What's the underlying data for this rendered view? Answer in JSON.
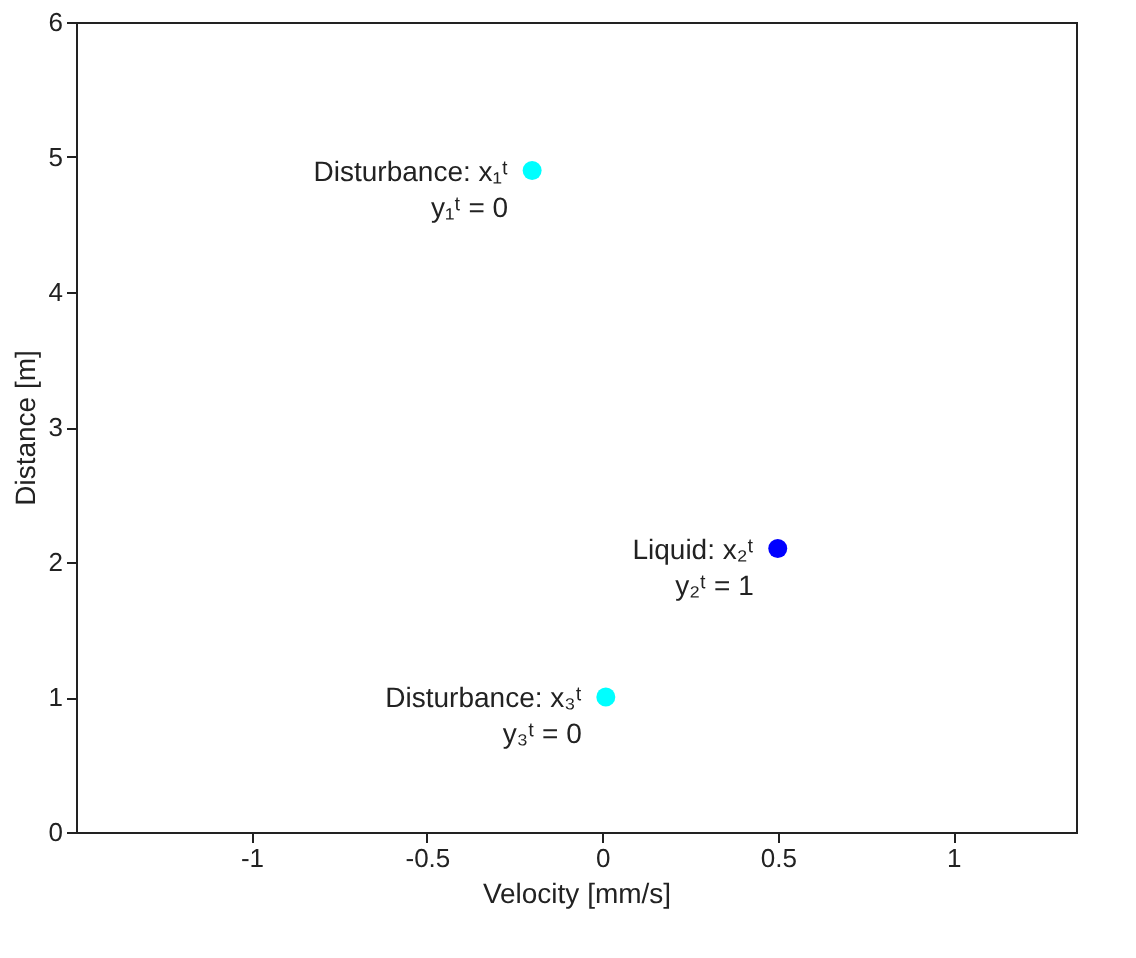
{
  "chart_data": {
    "type": "scatter",
    "xlabel": "Velocity [mm/s]",
    "ylabel": "Distance [m]",
    "x": [
      -0.2,
      0.5,
      0.01
    ],
    "values": [
      4.9,
      2.1,
      1.0
    ],
    "colors": [
      "#00ffff",
      "#0000ff",
      "#00ffff"
    ],
    "marker": "circle",
    "xlim": [
      -1.5,
      1.35
    ],
    "xticks": [
      -1,
      -0.5,
      0,
      0.5,
      1
    ],
    "ylim": [
      0,
      6
    ],
    "yticks": [
      0,
      1,
      2,
      3,
      4,
      5,
      6
    ],
    "grid": false,
    "annotations": [
      {
        "text": "Disturbance: x₁ᵗ\ny₁ᵗ = 0",
        "x": -0.2,
        "y": 4.9
      },
      {
        "text": "Liquid: x₂ᵗ\ny₂ᵗ = 1",
        "x": 0.5,
        "y": 2.1
      },
      {
        "text": "Disturbance: x₃ᵗ\ny₃ᵗ = 0",
        "x": 0.01,
        "y": 1.0
      }
    ]
  }
}
